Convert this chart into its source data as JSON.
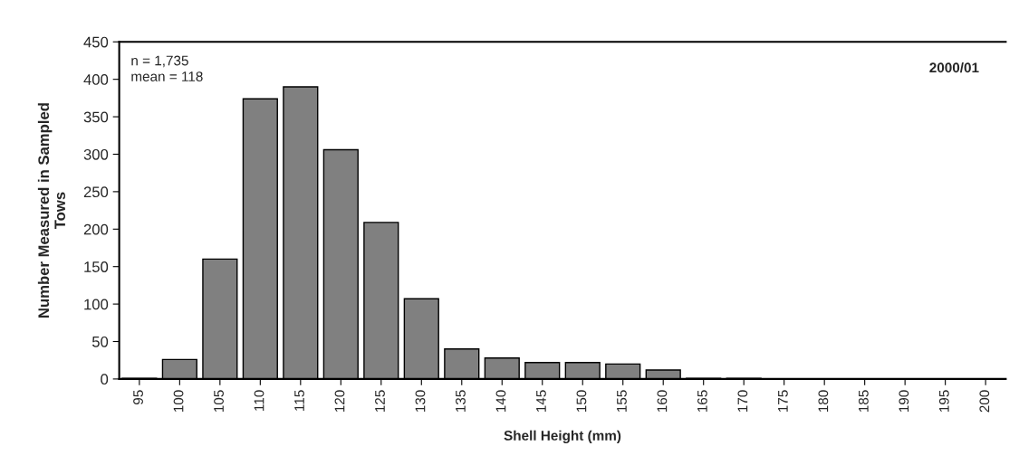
{
  "chart_data": {
    "type": "bar",
    "xlabel": "Shell Height (mm)",
    "ylabel": "Number Measured in Sampled\nTows",
    "categories": [
      "95",
      "100",
      "105",
      "110",
      "115",
      "120",
      "125",
      "130",
      "135",
      "140",
      "145",
      "150",
      "155",
      "160",
      "165",
      "170",
      "175",
      "180",
      "185",
      "190",
      "195",
      "200"
    ],
    "values": [
      1,
      26,
      160,
      374,
      390,
      306,
      209,
      107,
      40,
      28,
      22,
      22,
      20,
      12,
      1,
      1,
      0,
      0,
      0,
      0,
      0,
      0
    ],
    "color": "#808080",
    "ylim": [
      0,
      450
    ],
    "yticks": [
      0,
      50,
      100,
      150,
      200,
      250,
      300,
      350,
      400,
      450
    ],
    "grid": false,
    "annotations": [
      "n = 1,735\nmean = 118",
      "2000/01"
    ]
  }
}
